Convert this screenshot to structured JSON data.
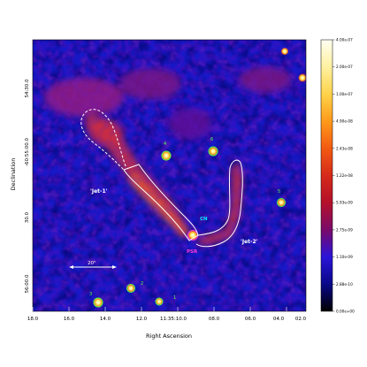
{
  "axes": {
    "xlabel": "Right Ascension",
    "ylabel": "Declination",
    "x_ticks": [
      "18.0",
      "16.0",
      "14.0",
      "12.0",
      "11:35:10.0",
      "08.0",
      "06.0",
      "04.0",
      "02.0"
    ],
    "y_ticks": [
      "54:30.0",
      "-60:55:00.0",
      "30.0",
      "56:00.0"
    ]
  },
  "colorbar": {
    "labels": [
      "4.00e-07",
      "2.00e-07",
      "1.00e-07",
      "4.90e-08",
      "2.43e-08",
      "1.22e-08",
      "5.93e-09",
      "2.75e-09",
      "1.10e-09",
      "2.88e-10",
      "0.00e+00"
    ],
    "colors": [
      "#fffff2",
      "#fff1a0",
      "#ffd34a",
      "#ff9a1a",
      "#f25a12",
      "#d52a1a",
      "#b4102a",
      "#7a0a6a",
      "#2a14d8",
      "#0a0888",
      "#000000"
    ]
  },
  "annotations": {
    "jet1": "'Jet-1'",
    "jet2": "'Jet-2'",
    "cn": "CN",
    "psr": "PSR",
    "scale": "20\""
  },
  "sources": [
    "1",
    "2",
    "3",
    "4",
    "5",
    "6"
  ],
  "colors": {
    "jet_outline": "#ffffff",
    "cn_label": "#00e8ff",
    "psr_label": "#ff3ad8",
    "source_label": "#4cff4c",
    "jet_label": "#ffffff"
  }
}
